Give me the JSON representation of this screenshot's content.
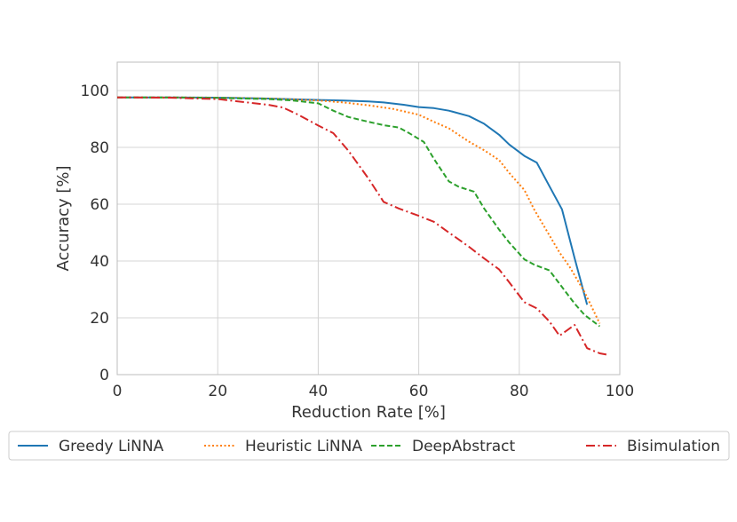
{
  "chart_data": {
    "type": "line",
    "title": "",
    "xlabel": "Reduction Rate [%]",
    "ylabel": "Accuracy [%]",
    "xlim": [
      0,
      100
    ],
    "ylim": [
      0,
      110
    ],
    "xticks": [
      0,
      20,
      40,
      60,
      80,
      100
    ],
    "yticks": [
      0,
      20,
      40,
      60,
      80,
      100
    ],
    "grid": true,
    "legend_position": "bottom",
    "series": [
      {
        "name": "Greedy LiNNA",
        "color": "#1f77b4",
        "style": "solid",
        "x": [
          0,
          10,
          20,
          30,
          40,
          45,
          50,
          53,
          57,
          60,
          63,
          66,
          70,
          73,
          76,
          78,
          81,
          83.5,
          86,
          88.5,
          91,
          93.5
        ],
        "y": [
          97.6,
          97.6,
          97.5,
          97.2,
          96.7,
          96.5,
          96.2,
          95.8,
          95,
          94.2,
          93.8,
          92.9,
          91,
          88.3,
          84.4,
          81,
          77,
          74.6,
          66.3,
          58.2,
          41,
          24.6
        ]
      },
      {
        "name": "Heuristic LiNNA",
        "color": "#ff7f0e",
        "style": "dotted",
        "x": [
          0,
          10,
          20,
          30,
          40,
          45,
          50,
          55,
          60,
          63,
          66,
          70,
          73,
          76,
          78,
          81,
          83,
          86,
          88,
          90,
          93,
          96
        ],
        "y": [
          97.6,
          97.6,
          97.5,
          97.2,
          96.5,
          95.8,
          94.8,
          93.5,
          91.5,
          89,
          86.7,
          82,
          79,
          75.5,
          71,
          65,
          58,
          49,
          43,
          38,
          29,
          18
        ]
      },
      {
        "name": "DeepAbstract",
        "color": "#2ca02c",
        "style": "dashed",
        "x": [
          0,
          10,
          20,
          30,
          35,
          40,
          43,
          46,
          50,
          53,
          56,
          58,
          61,
          63,
          66,
          68,
          71,
          73,
          76,
          78,
          81,
          83,
          86,
          88,
          91,
          93,
          96
        ],
        "y": [
          97.6,
          97.6,
          97.4,
          97,
          96.5,
          95.5,
          92.9,
          90.7,
          89,
          87.8,
          87,
          85.1,
          81.9,
          76,
          68,
          66.1,
          64.4,
          58.5,
          51,
          46.5,
          40.6,
          38.7,
          36.7,
          32,
          25,
          21,
          17
        ]
      },
      {
        "name": "Bisimulation",
        "color": "#d62728",
        "style": "dashdot",
        "x": [
          0,
          10,
          20,
          30,
          33,
          36,
          40,
          43,
          46,
          50,
          53,
          56,
          60,
          63,
          66,
          70,
          73,
          76,
          78,
          81,
          83.5,
          86,
          88,
          91,
          93.5,
          96,
          97.5
        ],
        "y": [
          97.6,
          97.5,
          97,
          95,
          94,
          91.5,
          87.7,
          85,
          78.8,
          69,
          60.8,
          58.5,
          55.9,
          53.8,
          50,
          45,
          40.9,
          37,
          32.5,
          25.5,
          23.3,
          18.7,
          13.7,
          17.5,
          9.3,
          7.5,
          7
        ]
      }
    ]
  }
}
